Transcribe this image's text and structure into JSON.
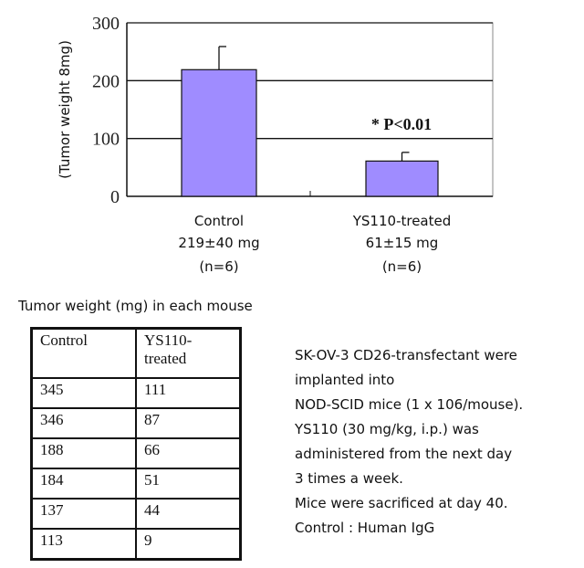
{
  "chart_data": {
    "type": "bar",
    "ylabel": "(Tumor weight 8mg)",
    "ylim": [
      0,
      300
    ],
    "yticks": [
      "0",
      "100",
      "200",
      "300"
    ],
    "grid": true,
    "categories": [
      "Control",
      "YS110-treated"
    ],
    "category_labels": [
      [
        "Control",
        "219±40 mg",
        "(n=6)"
      ],
      [
        "YS110-treated",
        "61±15 mg",
        "(n=6)"
      ]
    ],
    "values": [
      219,
      61
    ],
    "errors": [
      40,
      15
    ],
    "bar_color": "#9f8cff",
    "annotation": "* P<0.01"
  },
  "table": {
    "caption": "Tumor weight (mg) in each mouse",
    "headers": [
      [
        "Control"
      ],
      [
        "YS110-",
        "treated"
      ]
    ],
    "rows": [
      [
        "345",
        "111"
      ],
      [
        "346",
        "87"
      ],
      [
        "188",
        "66"
      ],
      [
        "184",
        "51"
      ],
      [
        "137",
        "44"
      ],
      [
        "113",
        "9"
      ]
    ]
  },
  "notes": [
    "SK-OV-3 CD26-transfectant were",
    "implanted into",
    "NOD-SCID mice (1 x 106/mouse).",
    "YS110 (30 mg/kg, i.p.) was",
    "administered from the next day",
    "3 times a week.",
    "Mice were sacrificed at day 40.",
    "Control : Human IgG"
  ]
}
